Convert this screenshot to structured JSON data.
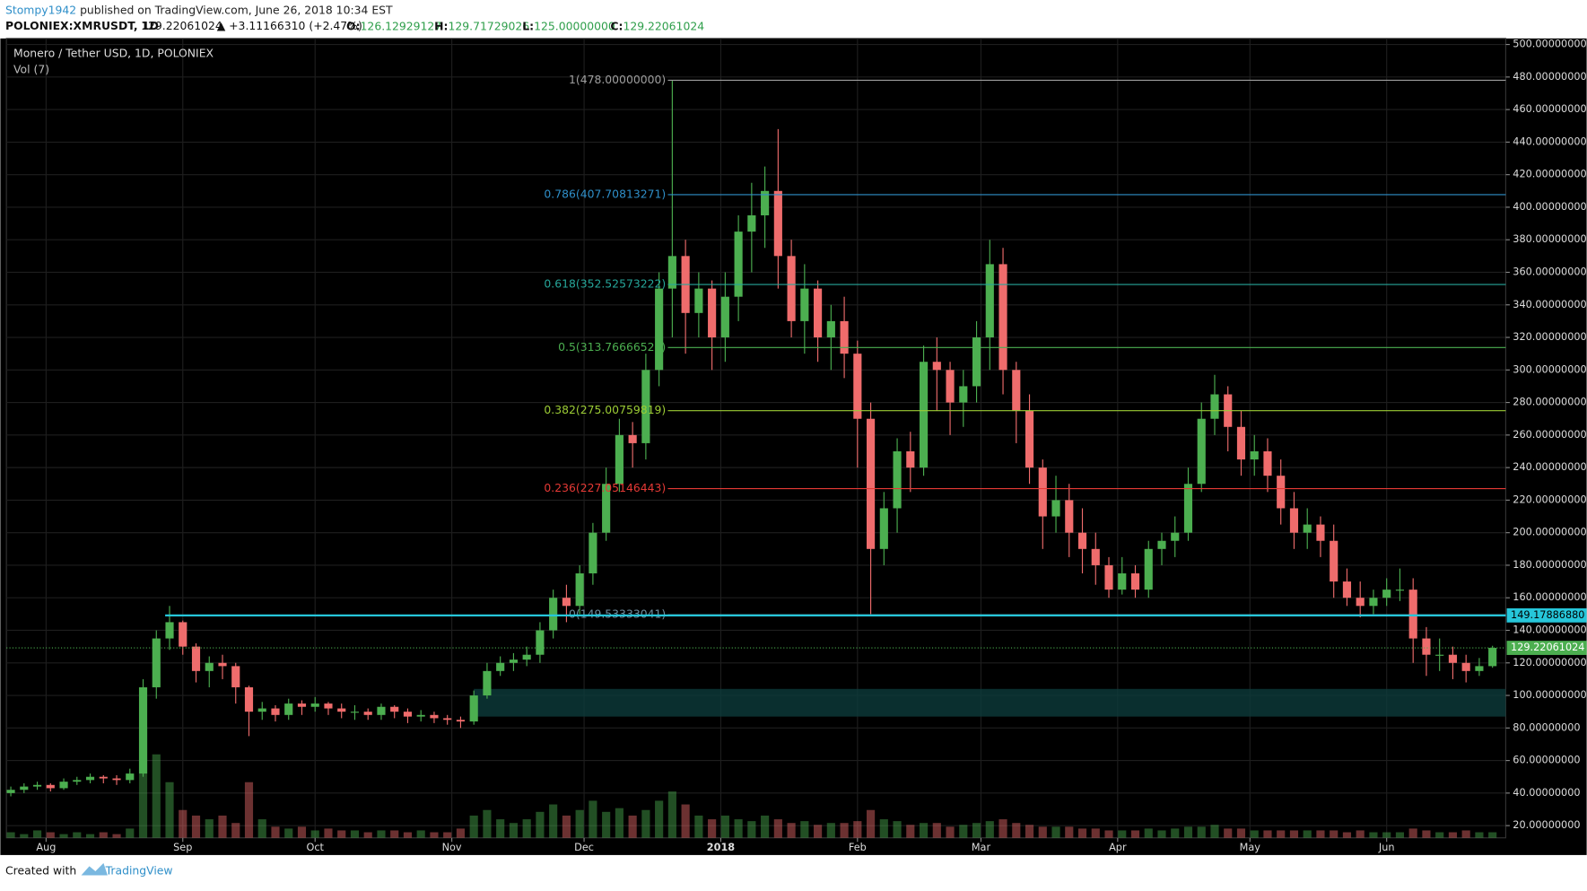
{
  "header": {
    "author": "Stompy1942",
    "published": "published on TradingView.com, June 26, 2018 10:34 EST",
    "symbol": "POLONIEX:XMRUSDT, 1D",
    "last": "129.22061024",
    "change": "▲ +3.11166310 (+2.47%)",
    "ohlc": [
      {
        "label": "O:",
        "value": "126.12929127"
      },
      {
        "label": "H:",
        "value": "129.71729026"
      },
      {
        "label": "L:",
        "value": "125.00000000"
      },
      {
        "label": "C:",
        "value": "129.22061024"
      }
    ]
  },
  "footer": {
    "created": "Created with",
    "brand": "TradingView"
  },
  "chart_data": {
    "type": "candlestick",
    "title": "Monero / Tether USD, 1D, POLONIEX",
    "volume_label": "Vol (7)",
    "up_color": "#4caf50",
    "down_color": "#ef6c6c",
    "grid": true,
    "xlim": [
      -9,
      331
    ],
    "ylim": [
      12.5,
      503.7
    ],
    "xticks": [
      {
        "value": 0,
        "label": "Aug"
      },
      {
        "value": 31,
        "label": "Sep"
      },
      {
        "value": 61,
        "label": "Oct"
      },
      {
        "value": 92,
        "label": "Nov"
      },
      {
        "value": 122,
        "label": "Dec"
      },
      {
        "value": 153,
        "label": "2018"
      },
      {
        "value": 184,
        "label": "Feb"
      },
      {
        "value": 212,
        "label": "Mar"
      },
      {
        "value": 243,
        "label": "Apr"
      },
      {
        "value": 273,
        "label": "May"
      },
      {
        "value": 304,
        "label": "Jun"
      }
    ],
    "yticks": [
      {
        "value": 20,
        "label": "20.00000000"
      },
      {
        "value": 40,
        "label": "40.00000000"
      },
      {
        "value": 60,
        "label": "60.00000000"
      },
      {
        "value": 80,
        "label": "80.00000000"
      },
      {
        "value": 100,
        "label": "100.00000000"
      },
      {
        "value": 120,
        "label": "120.00000000"
      },
      {
        "value": 140,
        "label": "140.00000000"
      },
      {
        "value": 160,
        "label": "160.00000000"
      },
      {
        "value": 180,
        "label": "180.00000000"
      },
      {
        "value": 200,
        "label": "200.00000000"
      },
      {
        "value": 220,
        "label": "220.00000000"
      },
      {
        "value": 240,
        "label": "240.00000000"
      },
      {
        "value": 260,
        "label": "260.00000000"
      },
      {
        "value": 280,
        "label": "280.00000000"
      },
      {
        "value": 300,
        "label": "300.00000000"
      },
      {
        "value": 320,
        "label": "320.00000000"
      },
      {
        "value": 340,
        "label": "340.00000000"
      },
      {
        "value": 360,
        "label": "360.00000000"
      },
      {
        "value": 380,
        "label": "380.00000000"
      },
      {
        "value": 400,
        "label": "400.00000000"
      },
      {
        "value": 420,
        "label": "420.00000000"
      },
      {
        "value": 440,
        "label": "440.00000000"
      },
      {
        "value": 460,
        "label": "460.00000000"
      },
      {
        "value": 480,
        "label": "480.00000000"
      },
      {
        "value": 500,
        "label": "500.00000000"
      }
    ],
    "x": [
      -8,
      -5,
      -2,
      1,
      4,
      7,
      10,
      13,
      16,
      19,
      22,
      25,
      28,
      31,
      34,
      37,
      40,
      43,
      46,
      49,
      52,
      55,
      58,
      61,
      64,
      67,
      70,
      73,
      76,
      79,
      82,
      85,
      88,
      91,
      94,
      97,
      100,
      103,
      106,
      109,
      112,
      115,
      118,
      121,
      124,
      127,
      130,
      133,
      136,
      139,
      142,
      145,
      148,
      151,
      154,
      157,
      160,
      163,
      166,
      169,
      172,
      175,
      178,
      181,
      184,
      187,
      190,
      193,
      196,
      199,
      202,
      205,
      208,
      211,
      214,
      217,
      220,
      223,
      226,
      229,
      232,
      235,
      238,
      241,
      244,
      247,
      250,
      253,
      256,
      259,
      262,
      265,
      268,
      271,
      274,
      277,
      280,
      283,
      286,
      289,
      292,
      295,
      298,
      301,
      304,
      307,
      310,
      313,
      316,
      319,
      322,
      325,
      328
    ],
    "open": [
      40,
      42,
      44,
      45,
      43,
      47,
      48,
      50,
      49,
      48,
      52,
      105,
      135,
      145,
      130,
      115,
      120,
      118,
      105,
      90,
      92,
      88,
      95,
      93,
      95,
      92,
      90,
      90,
      88,
      93,
      90,
      87,
      88,
      86,
      85,
      84,
      100,
      115,
      120,
      122,
      125,
      140,
      160,
      155,
      175,
      200,
      230,
      260,
      255,
      300,
      350,
      370,
      335,
      350,
      320,
      345,
      385,
      395,
      410,
      370,
      330,
      350,
      320,
      330,
      310,
      270,
      190,
      215,
      250,
      240,
      305,
      300,
      280,
      290,
      320,
      365,
      300,
      275,
      240,
      210,
      220,
      200,
      190,
      180,
      165,
      175,
      165,
      190,
      195,
      200,
      230,
      270,
      285,
      265,
      245,
      250,
      235,
      215,
      200,
      205,
      195,
      170,
      160,
      155,
      160,
      165,
      165,
      135,
      125,
      125,
      120,
      115,
      118
    ],
    "high": [
      44,
      46,
      47,
      46,
      49,
      50,
      52,
      51,
      51,
      55,
      110,
      140,
      155,
      146,
      132,
      124,
      125,
      120,
      106,
      96,
      94,
      98,
      97,
      99,
      96,
      95,
      94,
      92,
      95,
      94,
      92,
      91,
      90,
      88,
      87,
      103,
      120,
      124,
      126,
      130,
      145,
      165,
      168,
      180,
      206,
      240,
      270,
      268,
      310,
      360,
      478,
      380,
      360,
      355,
      360,
      395,
      415,
      425,
      448,
      380,
      365,
      355,
      340,
      345,
      318,
      280,
      225,
      258,
      262,
      315,
      320,
      305,
      300,
      330,
      380,
      375,
      305,
      285,
      245,
      235,
      230,
      215,
      200,
      185,
      185,
      180,
      195,
      200,
      210,
      240,
      280,
      297,
      290,
      275,
      260,
      258,
      245,
      225,
      215,
      210,
      205,
      178,
      170,
      165,
      172,
      178,
      172,
      142,
      135,
      130,
      125,
      123,
      130.5
    ],
    "low": [
      38,
      40,
      42,
      41,
      42,
      45,
      46,
      46,
      45,
      46,
      50,
      98,
      128,
      125,
      108,
      105,
      110,
      95,
      75,
      85,
      84,
      85,
      88,
      90,
      88,
      86,
      85,
      85,
      85,
      86,
      83,
      84,
      83,
      82,
      80,
      82,
      98,
      112,
      115,
      118,
      120,
      135,
      145,
      150,
      168,
      195,
      225,
      240,
      245,
      290,
      320,
      310,
      320,
      300,
      305,
      330,
      360,
      375,
      350,
      320,
      310,
      305,
      300,
      295,
      240,
      150,
      180,
      200,
      225,
      235,
      275,
      260,
      265,
      280,
      300,
      285,
      255,
      230,
      190,
      200,
      185,
      175,
      168,
      160,
      162,
      160,
      160,
      180,
      185,
      195,
      225,
      260,
      250,
      235,
      235,
      225,
      205,
      190,
      190,
      185,
      160,
      155,
      148,
      150,
      155,
      158,
      120,
      112,
      115,
      110,
      108,
      112,
      117
    ],
    "close": [
      42,
      44,
      45,
      43,
      47,
      48,
      50,
      49,
      48,
      52,
      105,
      135,
      145,
      130,
      115,
      120,
      118,
      105,
      90,
      92,
      88,
      95,
      93,
      95,
      92,
      90,
      90,
      88,
      93,
      90,
      87,
      88,
      86,
      85,
      84,
      100,
      115,
      120,
      122,
      125,
      140,
      160,
      155,
      175,
      200,
      230,
      260,
      255,
      300,
      350,
      370,
      335,
      350,
      320,
      345,
      385,
      395,
      410,
      370,
      330,
      350,
      320,
      330,
      310,
      270,
      190,
      215,
      250,
      240,
      305,
      300,
      280,
      290,
      320,
      365,
      300,
      275,
      240,
      210,
      220,
      200,
      190,
      180,
      165,
      175,
      165,
      190,
      195,
      200,
      230,
      270,
      285,
      265,
      245,
      250,
      235,
      215,
      200,
      205,
      195,
      170,
      160,
      155,
      160,
      165,
      165,
      135,
      125,
      125,
      120,
      115,
      118,
      129.22
    ],
    "volume": [
      3,
      2,
      4,
      3,
      2,
      3,
      2,
      3,
      2,
      5,
      60,
      45,
      30,
      15,
      12,
      10,
      12,
      8,
      30,
      10,
      6,
      5,
      6,
      4,
      5,
      4,
      4,
      3,
      4,
      4,
      3,
      4,
      3,
      3,
      5,
      12,
      15,
      10,
      8,
      10,
      14,
      18,
      12,
      15,
      20,
      14,
      16,
      12,
      15,
      20,
      25,
      18,
      12,
      10,
      12,
      10,
      9,
      12,
      10,
      8,
      9,
      7,
      8,
      8,
      9,
      15,
      10,
      9,
      7,
      8,
      8,
      6,
      7,
      8,
      9,
      10,
      8,
      7,
      6,
      6,
      6,
      5,
      5,
      4,
      4,
      4,
      5,
      4,
      5,
      6,
      6,
      7,
      5,
      5,
      4,
      4,
      4,
      4,
      4,
      4,
      4,
      3,
      4,
      3,
      3,
      3,
      5,
      4,
      3,
      3,
      4,
      3,
      3
    ],
    "fib_levels": [
      {
        "label": "1(478.00000000)",
        "value": 478.0,
        "color": "#9e9e9e",
        "x_start": 141
      },
      {
        "label": "0.786(407.70813271)",
        "value": 407.70813271,
        "color": "#2f8fc9",
        "x_start": 141
      },
      {
        "label": "0.618(352.52573222)",
        "value": 352.52573222,
        "color": "#26a69a",
        "x_start": 141
      },
      {
        "label": "0.5(313.76666520)",
        "value": 313.7666652,
        "color": "#4caf50",
        "x_start": 141
      },
      {
        "label": "0.382(275.00759819)",
        "value": 275.00759819,
        "color": "#9ccc35",
        "x_start": 141
      },
      {
        "label": "0.236(227.05146443)",
        "value": 227.05146443,
        "color": "#e53935",
        "x_start": 141
      },
      {
        "label": "0(149.53333041)",
        "value": 149.53333041,
        "color": "#6f8fa0",
        "x_start": 141
      }
    ],
    "hline": {
      "value": 149.1788688,
      "label": "149.17886880",
      "color": "#26c6da",
      "x_start": 27
    },
    "last_price": {
      "value": 129.22061024,
      "label": "129.22061024",
      "color": "#4caf50"
    },
    "zone": {
      "x_start": 97,
      "top": 104,
      "bottom": 87,
      "color": "#0d3b3b"
    }
  }
}
